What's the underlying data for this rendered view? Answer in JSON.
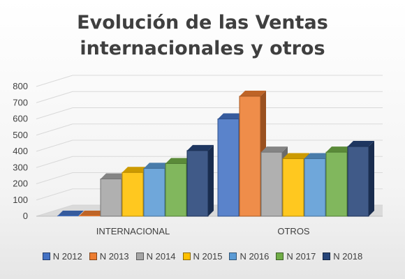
{
  "chart_data": {
    "type": "bar",
    "title_lines": [
      "Evolución de las Ventas",
      "internacionales y otros"
    ],
    "categories": [
      "INTERNACIONAL",
      "OTROS"
    ],
    "series": [
      {
        "name": "N 2012",
        "color": "#4472c4",
        "values": [
          0,
          600
        ]
      },
      {
        "name": "N 2013",
        "color": "#ed7d31",
        "values": [
          0,
          740
        ]
      },
      {
        "name": "N 2014",
        "color": "#a5a5a5",
        "values": [
          230,
          395
        ]
      },
      {
        "name": "N 2015",
        "color": "#ffc000",
        "values": [
          270,
          355
        ]
      },
      {
        "name": "N 2016",
        "color": "#5b9bd5",
        "values": [
          295,
          355
        ]
      },
      {
        "name": "N 2017",
        "color": "#70ad47",
        "values": [
          325,
          395
        ]
      },
      {
        "name": "N 2018",
        "color": "#264478",
        "values": [
          405,
          430
        ]
      }
    ],
    "y_ticks": [
      "0",
      "100",
      "200",
      "300",
      "400",
      "500",
      "600",
      "700",
      "800"
    ],
    "ylim": [
      0,
      800
    ],
    "grid": true,
    "legend_position": "bottom",
    "style": "3d-column"
  }
}
